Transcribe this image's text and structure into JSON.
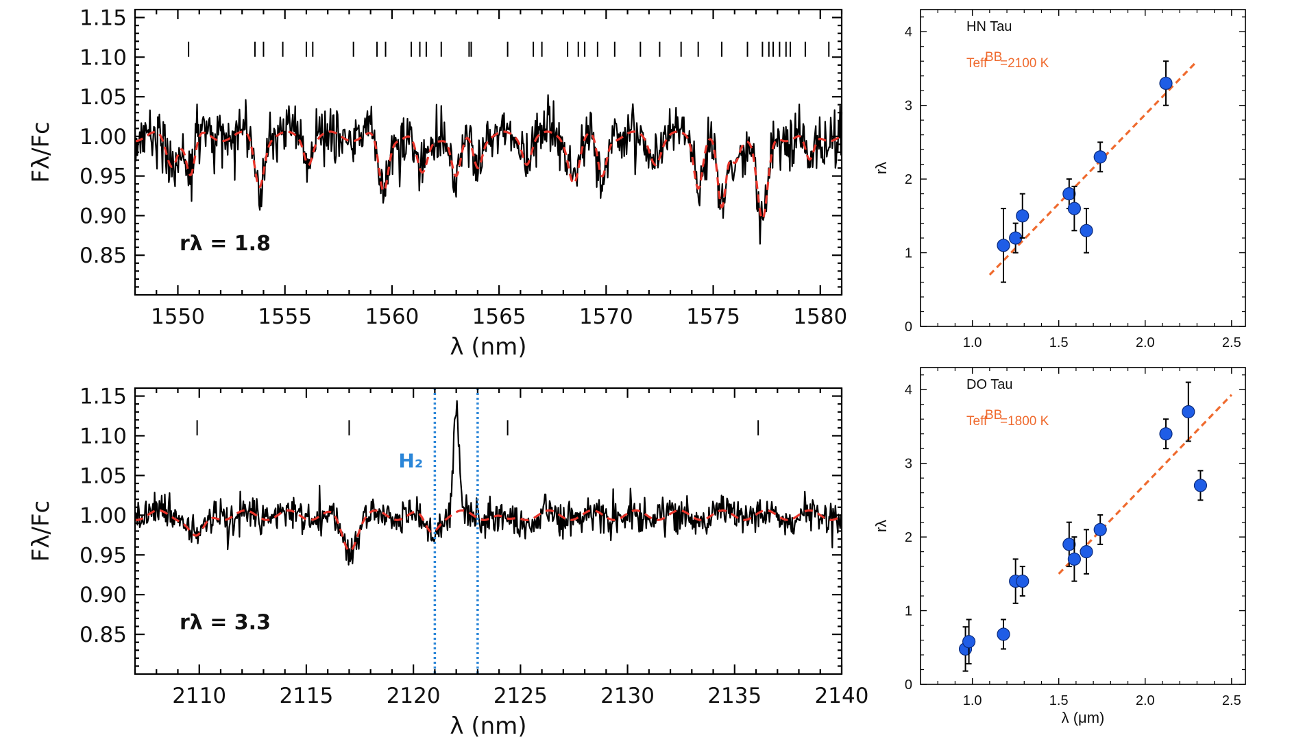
{
  "colors": {
    "spectrum": "#000000",
    "model": "#e8342a",
    "fit": "#ef6a2e",
    "points": "#1f5de6",
    "h2_lines": "#2b86d8"
  },
  "chart_data": [
    {
      "type": "line",
      "xlabel": "λ (nm)",
      "ylabel": "Fλ/Fc",
      "xlim": [
        1548,
        1581
      ],
      "ylim": [
        0.8,
        1.16
      ],
      "xticks": [
        1550,
        1555,
        1560,
        1565,
        1570,
        1575,
        1580
      ],
      "yticks": [
        0.85,
        0.9,
        0.95,
        1.0,
        1.05,
        1.1,
        1.15
      ],
      "ytick_labels": [
        "0.85",
        "0.90",
        "0.95",
        "1.00",
        "1.05",
        "1.10",
        "1.15"
      ],
      "r_label": "rλ = 1.8",
      "line_markers_y": 1.11,
      "line_markers_x": [
        1550.5,
        1553.6,
        1554.0,
        1554.9,
        1556.0,
        1556.3,
        1558.2,
        1559.3,
        1559.7,
        1560.9,
        1561.3,
        1561.6,
        1562.3,
        1563.6,
        1563.7,
        1565.4,
        1566.6,
        1567.0,
        1568.2,
        1568.7,
        1569.0,
        1569.6,
        1570.4,
        1571.6,
        1572.5,
        1573.5,
        1574.3,
        1575.4,
        1576.6,
        1577.3,
        1577.6,
        1577.8,
        1578.1,
        1578.4,
        1578.6,
        1579.3,
        1580.4
      ],
      "absorption_features": [
        {
          "x": 1549.7,
          "depth": 0.035,
          "width": 0.25
        },
        {
          "x": 1550.6,
          "depth": 0.05,
          "width": 0.2
        },
        {
          "x": 1553.8,
          "depth": 0.06,
          "width": 0.22
        },
        {
          "x": 1556.1,
          "depth": 0.03,
          "width": 0.2
        },
        {
          "x": 1559.6,
          "depth": 0.07,
          "width": 0.22
        },
        {
          "x": 1561.4,
          "depth": 0.05,
          "width": 0.25
        },
        {
          "x": 1563.0,
          "depth": 0.055,
          "width": 0.22
        },
        {
          "x": 1564.0,
          "depth": 0.035,
          "width": 0.2
        },
        {
          "x": 1566.3,
          "depth": 0.03,
          "width": 0.2
        },
        {
          "x": 1568.5,
          "depth": 0.055,
          "width": 0.25
        },
        {
          "x": 1569.8,
          "depth": 0.05,
          "width": 0.2
        },
        {
          "x": 1572.3,
          "depth": 0.03,
          "width": 0.25
        },
        {
          "x": 1574.3,
          "depth": 0.06,
          "width": 0.2
        },
        {
          "x": 1575.4,
          "depth": 0.095,
          "width": 0.2
        },
        {
          "x": 1576.0,
          "depth": 0.03,
          "width": 0.2
        },
        {
          "x": 1577.3,
          "depth": 0.11,
          "width": 0.25
        },
        {
          "x": 1579.5,
          "depth": 0.035,
          "width": 0.2
        }
      ],
      "emission_features": []
    },
    {
      "type": "line",
      "xlabel": "λ (nm)",
      "ylabel": "Fλ/Fc",
      "xlim": [
        2107,
        2140
      ],
      "ylim": [
        0.8,
        1.16
      ],
      "xticks": [
        2110,
        2115,
        2120,
        2125,
        2130,
        2135,
        2140
      ],
      "yticks": [
        0.85,
        0.9,
        0.95,
        1.0,
        1.05,
        1.1,
        1.15
      ],
      "ytick_labels": [
        "0.85",
        "0.90",
        "0.95",
        "1.00",
        "1.05",
        "1.10",
        "1.15"
      ],
      "r_label": "rλ = 3.3",
      "line_markers_y": 1.11,
      "line_markers_x": [
        2109.9,
        2117.0,
        2124.4,
        2136.1
      ],
      "h2_label": "H₂",
      "h2_bounds": [
        2121.0,
        2123.0
      ],
      "absorption_features": [
        {
          "x": 2109.9,
          "depth": 0.03,
          "width": 0.35
        },
        {
          "x": 2117.0,
          "depth": 0.04,
          "width": 0.35
        },
        {
          "x": 2120.8,
          "depth": 0.02,
          "width": 0.3
        },
        {
          "x": 2124.4,
          "depth": 0.01,
          "width": 0.3
        }
      ],
      "emission_features": [
        {
          "x": 2122.0,
          "height": 0.14,
          "width": 0.12
        }
      ]
    },
    {
      "type": "scatter",
      "object": "HN Tau",
      "teff_label": "Teff",
      "teff_sup": "BB",
      "teff_value": "=2100 K",
      "xlim": [
        0.7,
        2.58
      ],
      "ylim": [
        0,
        4.3
      ],
      "xticks": [
        1.0,
        1.5,
        2.0,
        2.5
      ],
      "xtick_labels": [
        "1.0",
        "1.5",
        "2.0",
        "2.5"
      ],
      "yticks": [
        0,
        1,
        2,
        3,
        4
      ],
      "ytick_labels": [
        "0",
        "1",
        "2",
        "3",
        "4"
      ],
      "ylabel": "rλ",
      "xlabel": "",
      "points": [
        {
          "x": 1.18,
          "y": 1.1,
          "err": 0.5
        },
        {
          "x": 1.25,
          "y": 1.2,
          "err": 0.2
        },
        {
          "x": 1.29,
          "y": 1.5,
          "err": 0.3
        },
        {
          "x": 1.56,
          "y": 1.8,
          "err": 0.2
        },
        {
          "x": 1.59,
          "y": 1.6,
          "err": 0.3
        },
        {
          "x": 1.66,
          "y": 1.3,
          "err": 0.3
        },
        {
          "x": 1.74,
          "y": 2.3,
          "err": 0.2
        },
        {
          "x": 2.12,
          "y": 3.3,
          "err": 0.3
        }
      ],
      "fit": [
        [
          1.1,
          0.7
        ],
        [
          2.3,
          3.6
        ]
      ]
    },
    {
      "type": "scatter",
      "object": "DO Tau",
      "teff_label": "Teff",
      "teff_sup": "BB",
      "teff_value": "=1800 K",
      "xlim": [
        0.7,
        2.58
      ],
      "ylim": [
        0,
        4.3
      ],
      "xticks": [
        1.0,
        1.5,
        2.0,
        2.5
      ],
      "xtick_labels": [
        "1.0",
        "1.5",
        "2.0",
        "2.5"
      ],
      "yticks": [
        0,
        1,
        2,
        3,
        4
      ],
      "ytick_labels": [
        "0",
        "1",
        "2",
        "3",
        "4"
      ],
      "ylabel": "rλ",
      "xlabel": "λ (μm)",
      "points": [
        {
          "x": 0.96,
          "y": 0.48,
          "err": 0.3
        },
        {
          "x": 0.98,
          "y": 0.58,
          "err": 0.3
        },
        {
          "x": 1.18,
          "y": 0.68,
          "err": 0.2
        },
        {
          "x": 1.25,
          "y": 1.4,
          "err": 0.3
        },
        {
          "x": 1.29,
          "y": 1.4,
          "err": 0.2
        },
        {
          "x": 1.56,
          "y": 1.9,
          "err": 0.3
        },
        {
          "x": 1.59,
          "y": 1.7,
          "err": 0.3
        },
        {
          "x": 1.66,
          "y": 1.8,
          "err": 0.3
        },
        {
          "x": 1.74,
          "y": 2.1,
          "err": 0.2
        },
        {
          "x": 2.12,
          "y": 3.4,
          "err": 0.2
        },
        {
          "x": 2.25,
          "y": 3.7,
          "err": 0.4
        },
        {
          "x": 2.32,
          "y": 2.7,
          "err": 0.2
        }
      ],
      "fit": [
        [
          1.5,
          1.5
        ],
        [
          2.5,
          3.93
        ]
      ]
    }
  ]
}
